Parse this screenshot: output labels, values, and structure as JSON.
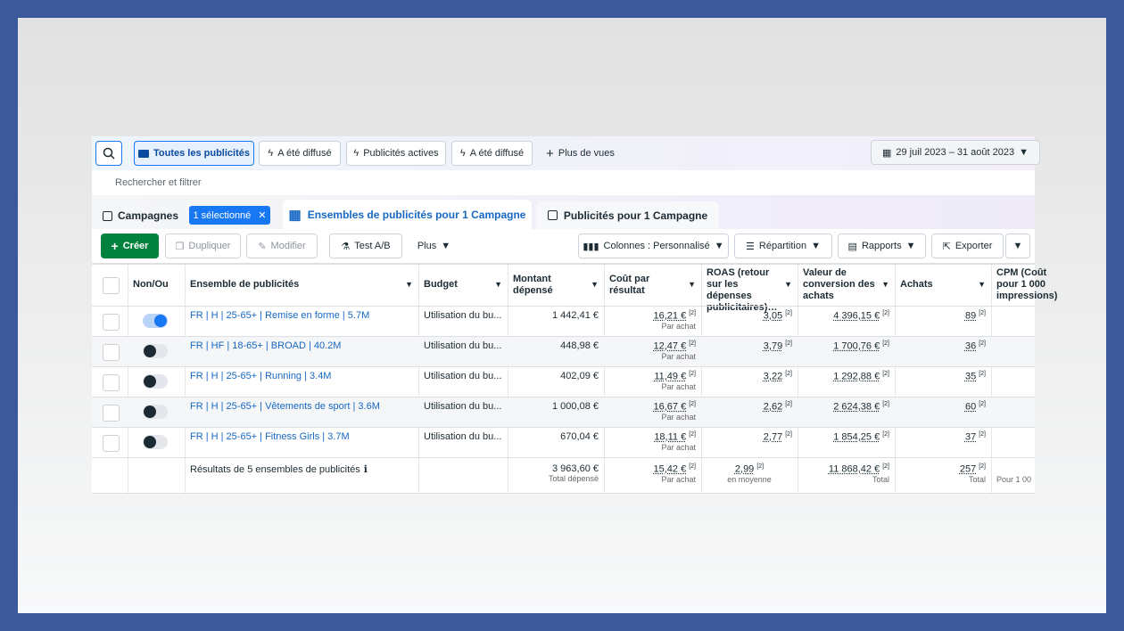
{
  "toolbar": {
    "views": [
      "Toutes les publicités",
      "A été diffusé",
      "Publicités actives",
      "A été diffusé",
      "Plus de vues"
    ],
    "date_range": "29 juil 2023 – 31 août 2023"
  },
  "search_placeholder": "Rechercher et filtrer",
  "tabs": {
    "campaigns": "Campagnes",
    "selected_chip": "1 sélectionné",
    "ad_sets": "Ensembles de publicités pour 1 Campagne",
    "ads": "Publicités pour 1 Campagne"
  },
  "actions": {
    "create": "Créer",
    "duplicate": "Dupliquer",
    "edit": "Modifier",
    "ab_test": "Test A/B",
    "more": "Plus",
    "columns": "Colonnes : Personnalisé",
    "breakdown": "Répartition",
    "reports": "Rapports",
    "export": "Exporter"
  },
  "table": {
    "note_marker": "[2]",
    "headers": {
      "toggle": "Non/Ou",
      "name": "Ensemble de publicités",
      "budget": "Budget",
      "spent": "Montant dépensé",
      "cost": "Coût par résultat",
      "roas": "ROAS (retour sur les dépenses publicitaires)…",
      "value": "Valeur de conversion des achats",
      "purchases": "Achats",
      "cpm": "CPM (Coût pour 1 000 impressions)"
    },
    "rows": [
      {
        "active": true,
        "name": "FR | H | 25-65+ | Remise en forme | 5.7M",
        "budget": "Utilisation du bu...",
        "spent": "1 442,41 €",
        "cost": "16,21 €",
        "cost_sub": "Par achat",
        "roas": "3,05",
        "value": "4 396,15 €",
        "purchases": "89"
      },
      {
        "active": false,
        "name": "FR | HF | 18-65+ | BROAD | 40.2M",
        "budget": "Utilisation du bu...",
        "spent": "448,98 €",
        "cost": "12,47 €",
        "cost_sub": "Par achat",
        "roas": "3,79",
        "value": "1 700,76 €",
        "purchases": "36"
      },
      {
        "active": false,
        "name": "FR | H | 25-65+ | Running | 3.4M",
        "budget": "Utilisation du bu...",
        "spent": "402,09 €",
        "cost": "11,49 €",
        "cost_sub": "Par achat",
        "roas": "3,22",
        "value": "1 292,88 €",
        "purchases": "35"
      },
      {
        "active": false,
        "name": "FR | H | 25-65+ | Vêtements de sport | 3.6M",
        "budget": "Utilisation du bu...",
        "spent": "1 000,08 €",
        "cost": "16,67 €",
        "cost_sub": "Par achat",
        "roas": "2,62",
        "value": "2 624,38 €",
        "purchases": "60"
      },
      {
        "active": false,
        "name": "FR | H | 25-65+ | Fitness Girls | 3.7M",
        "budget": "Utilisation du bu...",
        "spent": "670,04 €",
        "cost": "18,11 €",
        "cost_sub": "Par achat",
        "roas": "2,77",
        "value": "1 854,25 €",
        "purchases": "37"
      }
    ],
    "footer": {
      "label": "Résultats de 5 ensembles de publicités",
      "spent": "3 963,60 €",
      "spent_sub": "Total dépensé",
      "cost": "15,42 €",
      "cost_sub": "Par achat",
      "roas": "2,99",
      "roas_sub": "en moyenne",
      "value": "11 868,42 €",
      "value_sub": "Total",
      "purchases": "257",
      "purchases_sub": "Total",
      "cpm_sub": "Pour 1 00"
    }
  }
}
